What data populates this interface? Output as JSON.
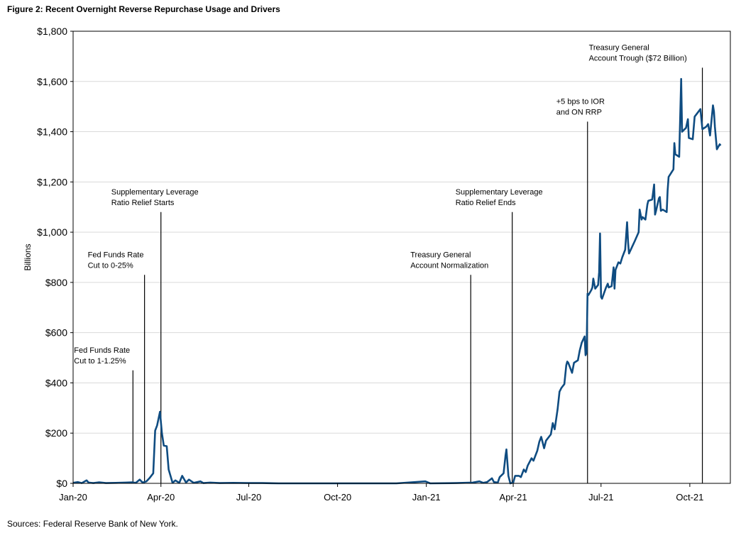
{
  "title": "Figure 2: Recent Overnight Reverse Repurchase Usage and Drivers",
  "source": "Sources: Federal Reserve Bank of New York.",
  "colors": {
    "line": "#0F4C81",
    "axis": "#000000",
    "grid": "#D9D9D9"
  },
  "chart_data": {
    "type": "line",
    "ylabel": "Billions",
    "ylim": [
      0,
      1800
    ],
    "grid": true,
    "yticks": [
      0,
      200,
      400,
      600,
      800,
      1000,
      1200,
      1400,
      1600,
      1800
    ],
    "ytick_labels": [
      "$0",
      "$200",
      "$400",
      "$600",
      "$800",
      "$1,000",
      "$1,200",
      "$1,400",
      "$1,600",
      "$1,800"
    ],
    "xlim": [
      "2020-01-01",
      "2021-11-12"
    ],
    "xticks": [
      "2020-01-01",
      "2020-04-01",
      "2020-07-01",
      "2020-10-01",
      "2021-01-01",
      "2021-04-01",
      "2021-07-01",
      "2021-10-01"
    ],
    "xtick_labels": [
      "Jan-20",
      "Apr-20",
      "Jul-20",
      "Oct-20",
      "Jan-21",
      "Apr-21",
      "Jul-21",
      "Oct-21"
    ],
    "series": [
      {
        "points": [
          [
            "2020-01-01",
            2
          ],
          [
            "2020-01-06",
            5
          ],
          [
            "2020-01-10",
            1
          ],
          [
            "2020-01-15",
            12
          ],
          [
            "2020-01-17",
            3
          ],
          [
            "2020-01-22",
            1
          ],
          [
            "2020-01-28",
            4
          ],
          [
            "2020-02-04",
            1
          ],
          [
            "2020-02-14",
            2
          ],
          [
            "2020-02-24",
            3
          ],
          [
            "2020-03-02",
            4
          ],
          [
            "2020-03-06",
            2
          ],
          [
            "2020-03-10",
            15
          ],
          [
            "2020-03-13",
            3
          ],
          [
            "2020-03-17",
            8
          ],
          [
            "2020-03-20",
            20
          ],
          [
            "2020-03-24",
            40
          ],
          [
            "2020-03-26",
            210
          ],
          [
            "2020-03-28",
            230
          ],
          [
            "2020-03-31",
            285
          ],
          [
            "2020-04-02",
            200
          ],
          [
            "2020-04-04",
            150
          ],
          [
            "2020-04-07",
            148
          ],
          [
            "2020-04-09",
            55
          ],
          [
            "2020-04-13",
            2
          ],
          [
            "2020-04-16",
            12
          ],
          [
            "2020-04-20",
            2
          ],
          [
            "2020-04-23",
            30
          ],
          [
            "2020-04-27",
            3
          ],
          [
            "2020-04-30",
            15
          ],
          [
            "2020-05-05",
            2
          ],
          [
            "2020-05-12",
            8
          ],
          [
            "2020-05-15",
            1
          ],
          [
            "2020-05-22",
            3
          ],
          [
            "2020-06-01",
            1
          ],
          [
            "2020-06-15",
            2
          ],
          [
            "2020-06-30",
            1
          ],
          [
            "2020-07-15",
            1
          ],
          [
            "2020-08-01",
            0
          ],
          [
            "2020-09-01",
            0
          ],
          [
            "2020-10-01",
            0
          ],
          [
            "2020-11-01",
            0
          ],
          [
            "2020-12-01",
            0
          ],
          [
            "2020-12-31",
            8
          ],
          [
            "2021-01-05",
            0
          ],
          [
            "2021-02-01",
            1
          ],
          [
            "2021-02-18",
            3
          ],
          [
            "2021-02-25",
            8
          ],
          [
            "2021-03-01",
            2
          ],
          [
            "2021-03-05",
            5
          ],
          [
            "2021-03-10",
            20
          ],
          [
            "2021-03-12",
            5
          ],
          [
            "2021-03-16",
            3
          ],
          [
            "2021-03-18",
            25
          ],
          [
            "2021-03-22",
            40
          ],
          [
            "2021-03-24",
            110
          ],
          [
            "2021-03-25",
            135
          ],
          [
            "2021-03-27",
            30
          ],
          [
            "2021-03-29",
            0
          ],
          [
            "2021-04-01",
            3
          ],
          [
            "2021-04-03",
            30
          ],
          [
            "2021-04-07",
            30
          ],
          [
            "2021-04-09",
            25
          ],
          [
            "2021-04-12",
            55
          ],
          [
            "2021-04-14",
            45
          ],
          [
            "2021-04-16",
            70
          ],
          [
            "2021-04-20",
            100
          ],
          [
            "2021-04-22",
            90
          ],
          [
            "2021-04-26",
            130
          ],
          [
            "2021-04-28",
            165
          ],
          [
            "2021-04-30",
            185
          ],
          [
            "2021-05-03",
            140
          ],
          [
            "2021-05-05",
            170
          ],
          [
            "2021-05-07",
            180
          ],
          [
            "2021-05-10",
            195
          ],
          [
            "2021-05-12",
            240
          ],
          [
            "2021-05-14",
            215
          ],
          [
            "2021-05-17",
            295
          ],
          [
            "2021-05-19",
            365
          ],
          [
            "2021-05-21",
            380
          ],
          [
            "2021-05-24",
            395
          ],
          [
            "2021-05-26",
            470
          ],
          [
            "2021-05-27",
            485
          ],
          [
            "2021-05-28",
            480
          ],
          [
            "2021-06-01",
            440
          ],
          [
            "2021-06-03",
            480
          ],
          [
            "2021-06-07",
            490
          ],
          [
            "2021-06-09",
            530
          ],
          [
            "2021-06-11",
            560
          ],
          [
            "2021-06-14",
            585
          ],
          [
            "2021-06-15",
            510
          ],
          [
            "2021-06-16",
            520
          ],
          [
            "2021-06-17",
            755
          ],
          [
            "2021-06-18",
            750
          ],
          [
            "2021-06-21",
            770
          ],
          [
            "2021-06-22",
            780
          ],
          [
            "2021-06-23",
            815
          ],
          [
            "2021-06-25",
            775
          ],
          [
            "2021-06-28",
            790
          ],
          [
            "2021-06-29",
            840
          ],
          [
            "2021-06-30",
            995
          ],
          [
            "2021-07-01",
            742
          ],
          [
            "2021-07-02",
            735
          ],
          [
            "2021-07-06",
            778
          ],
          [
            "2021-07-08",
            795
          ],
          [
            "2021-07-09",
            780
          ],
          [
            "2021-07-12",
            785
          ],
          [
            "2021-07-14",
            860
          ],
          [
            "2021-07-15",
            775
          ],
          [
            "2021-07-16",
            850
          ],
          [
            "2021-07-19",
            880
          ],
          [
            "2021-07-21",
            875
          ],
          [
            "2021-07-23",
            900
          ],
          [
            "2021-07-26",
            930
          ],
          [
            "2021-07-28",
            1040
          ],
          [
            "2021-07-29",
            960
          ],
          [
            "2021-07-30",
            915
          ],
          [
            "2021-08-02",
            940
          ],
          [
            "2021-08-05",
            965
          ],
          [
            "2021-08-09",
            1000
          ],
          [
            "2021-08-10",
            1090
          ],
          [
            "2021-08-12",
            1050
          ],
          [
            "2021-08-13",
            1060
          ],
          [
            "2021-08-16",
            1050
          ],
          [
            "2021-08-18",
            1110
          ],
          [
            "2021-08-19",
            1125
          ],
          [
            "2021-08-23",
            1130
          ],
          [
            "2021-08-25",
            1190
          ],
          [
            "2021-08-26",
            1070
          ],
          [
            "2021-08-27",
            1085
          ],
          [
            "2021-08-30",
            1135
          ],
          [
            "2021-08-31",
            1140
          ],
          [
            "2021-09-01",
            1085
          ],
          [
            "2021-09-03",
            1090
          ],
          [
            "2021-09-07",
            1080
          ],
          [
            "2021-09-08",
            1165
          ],
          [
            "2021-09-09",
            1220
          ],
          [
            "2021-09-14",
            1250
          ],
          [
            "2021-09-15",
            1355
          ],
          [
            "2021-09-16",
            1310
          ],
          [
            "2021-09-20",
            1300
          ],
          [
            "2021-09-22",
            1610
          ],
          [
            "2021-09-23",
            1400
          ],
          [
            "2021-09-27",
            1415
          ],
          [
            "2021-09-29",
            1450
          ],
          [
            "2021-09-30",
            1375
          ],
          [
            "2021-10-04",
            1370
          ],
          [
            "2021-10-06",
            1460
          ],
          [
            "2021-10-08",
            1470
          ],
          [
            "2021-10-12",
            1490
          ],
          [
            "2021-10-14",
            1410
          ],
          [
            "2021-10-18",
            1420
          ],
          [
            "2021-10-20",
            1430
          ],
          [
            "2021-10-22",
            1385
          ],
          [
            "2021-10-25",
            1505
          ],
          [
            "2021-10-26",
            1480
          ],
          [
            "2021-10-27",
            1420
          ],
          [
            "2021-10-29",
            1330
          ],
          [
            "2021-11-01",
            1350
          ],
          [
            "2021-11-02",
            1345
          ]
        ]
      }
    ],
    "annotations": [
      {
        "date": "2020-03-03",
        "top": 450,
        "lines": [
          "Fed Funds Rate",
          "Cut to 1-1.25%"
        ],
        "anchor": "above"
      },
      {
        "date": "2020-03-15",
        "top": 830,
        "lines": [
          "Fed Funds Rate",
          "Cut to 0-25%"
        ],
        "anchor": "above"
      },
      {
        "date": "2020-04-01",
        "top": 1080,
        "lines": [
          "Supplementary Leverage",
          "Ratio Relief Starts"
        ],
        "anchor": "above"
      },
      {
        "date": "2021-02-16",
        "top": 830,
        "lines": [
          "Treasury General",
          "Account Normalization"
        ],
        "anchor": "above"
      },
      {
        "date": "2021-03-31",
        "top": 1080,
        "lines": [
          "Supplementary Leverage",
          "Ratio Relief Ends"
        ],
        "anchor": "above"
      },
      {
        "date": "2021-06-17",
        "top": 1440,
        "lines": [
          "+5 bps to IOR",
          "and ON RRP"
        ],
        "anchor": "above"
      },
      {
        "date": "2021-10-14",
        "top": 1655,
        "lines": [
          "Treasury General",
          "Account Trough ($72 Billion)"
        ],
        "anchor": "above"
      }
    ]
  }
}
